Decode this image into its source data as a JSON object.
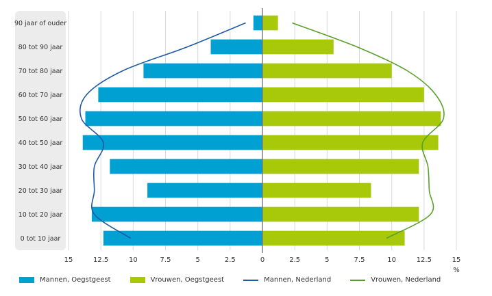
{
  "chart_data": {
    "type": "bar",
    "orientation": "horizontal",
    "categories": [
      "0 tot 10 jaar",
      "10 tot 20 jaar",
      "20 tot 30 jaar",
      "30 tot 40 jaar",
      "40 tot 50 jaar",
      "50 tot 60 jaar",
      "60 tot 70 jaar",
      "70 tot 80 jaar",
      "80 tot 90 jaar",
      "90 jaar of ouder"
    ],
    "series": [
      {
        "name": "Mannen, Oegstgeest",
        "kind": "bar",
        "side": "left",
        "color": "#00a0d2",
        "values": [
          12.3,
          13.2,
          8.9,
          11.8,
          13.9,
          13.7,
          12.7,
          9.2,
          4.0,
          0.7
        ]
      },
      {
        "name": "Vrouwen, Oegstgeest",
        "kind": "bar",
        "side": "right",
        "color": "#a8c80a",
        "values": [
          11.0,
          12.1,
          8.4,
          12.1,
          13.6,
          13.8,
          12.5,
          10.0,
          5.5,
          1.2
        ]
      },
      {
        "name": "Mannen, Nederland",
        "kind": "line",
        "side": "left",
        "color": "#1f5aa6",
        "values": [
          10.2,
          13.0,
          13.0,
          13.0,
          12.3,
          14.0,
          13.6,
          10.8,
          5.8,
          1.3
        ]
      },
      {
        "name": "Vrouwen, Nederland",
        "kind": "line",
        "side": "right",
        "color": "#5aa02c",
        "values": [
          9.6,
          13.0,
          12.9,
          12.8,
          12.4,
          14.0,
          13.4,
          11.2,
          7.3,
          2.3
        ]
      }
    ],
    "x_ticks": [
      "15",
      "12.5",
      "10",
      "7.5",
      "5",
      "2.5",
      "0",
      "2.5",
      "5",
      "7.5",
      "10",
      "12.5",
      "15"
    ],
    "x_unit": "%",
    "xlim": [
      -15,
      15
    ],
    "grid": true,
    "legend_position": "bottom"
  }
}
